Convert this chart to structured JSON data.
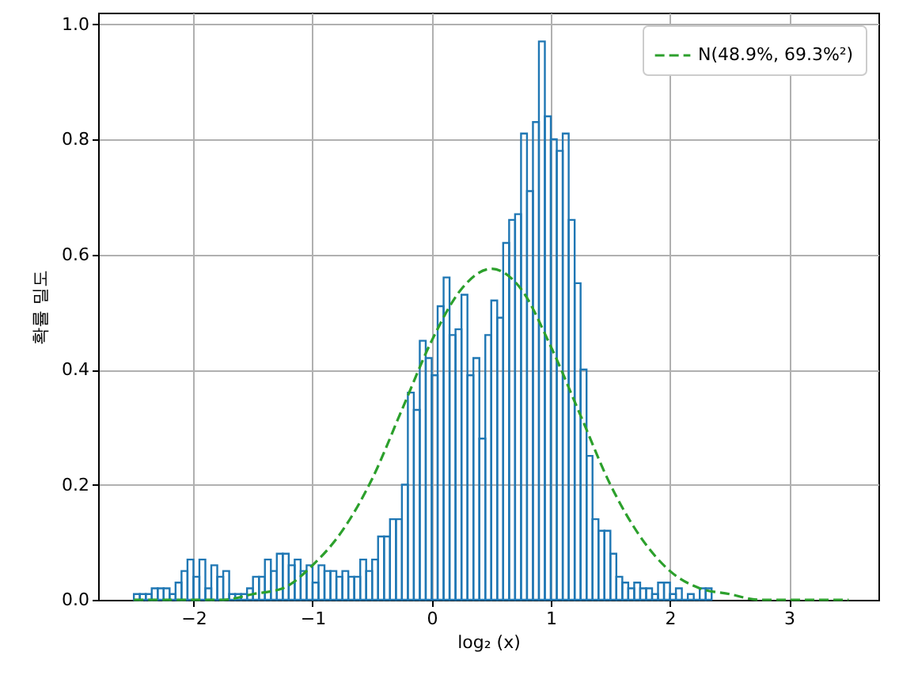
{
  "chart_data": {
    "type": "histogram",
    "xlabel": "log₂ (x)",
    "ylabel": "확률 밀도",
    "xlim": [
      -2.8,
      3.75
    ],
    "ylim": [
      0,
      1.02
    ],
    "xticks": [
      {
        "value": -2,
        "label": "−2"
      },
      {
        "value": -1,
        "label": "−1"
      },
      {
        "value": 0,
        "label": "0"
      },
      {
        "value": 1,
        "label": "1"
      },
      {
        "value": 2,
        "label": "2"
      },
      {
        "value": 3,
        "label": "3"
      }
    ],
    "yticks": [
      {
        "value": 0,
        "label": "0.0"
      },
      {
        "value": 0.2,
        "label": "0.2"
      },
      {
        "value": 0.4,
        "label": "0.4"
      },
      {
        "value": 0.6,
        "label": "0.6"
      },
      {
        "value": 0.8,
        "label": "0.8"
      },
      {
        "value": 1,
        "label": "1.0"
      }
    ],
    "grid": true,
    "legend": "top right",
    "series": [
      {
        "color": "#1f77b4",
        "bins": [
          -2.5,
          -2.45,
          -2.4,
          -2.35,
          -2.3,
          -2.25,
          -2.2,
          -2.15,
          -2.1,
          -2.05,
          -2.0,
          -1.95,
          -1.9,
          -1.85,
          -1.8,
          -1.75,
          -1.7,
          -1.65,
          -1.6,
          -1.55,
          -1.5,
          -1.45,
          -1.4,
          -1.35,
          -1.3,
          -1.25,
          -1.2,
          -1.15,
          -1.1,
          -1.05,
          -1.0,
          -0.95,
          -0.9,
          -0.85,
          -0.8,
          -0.75,
          -0.7,
          -0.65,
          -0.6,
          -0.55,
          -0.5,
          -0.45,
          -0.4,
          -0.35,
          -0.3,
          -0.25,
          -0.2,
          -0.15,
          -0.1,
          -0.05,
          0.0,
          0.05,
          0.1,
          0.15,
          0.2,
          0.25,
          0.3,
          0.35,
          0.4,
          0.45,
          0.5,
          0.55,
          0.6,
          0.65,
          0.7,
          0.75,
          0.8,
          0.85,
          0.9,
          0.95,
          1.0,
          1.05,
          1.1,
          1.15,
          1.2,
          1.25,
          1.3,
          1.35,
          1.4,
          1.45,
          1.5,
          1.55,
          1.6,
          1.65,
          1.7,
          1.75,
          1.8,
          1.85,
          1.9,
          1.95,
          2.0,
          2.05,
          2.1,
          2.15,
          2.2,
          2.25,
          2.3,
          2.35
        ],
        "values": [
          0.01,
          0.01,
          0.01,
          0.02,
          0.02,
          0.02,
          0.01,
          0.03,
          0.05,
          0.07,
          0.04,
          0.07,
          0.02,
          0.06,
          0.04,
          0.05,
          0.01,
          0.01,
          0.01,
          0.02,
          0.04,
          0.04,
          0.07,
          0.05,
          0.08,
          0.08,
          0.06,
          0.07,
          0.05,
          0.06,
          0.03,
          0.06,
          0.05,
          0.05,
          0.04,
          0.05,
          0.04,
          0.04,
          0.07,
          0.05,
          0.07,
          0.11,
          0.11,
          0.14,
          0.14,
          0.2,
          0.36,
          0.33,
          0.45,
          0.42,
          0.39,
          0.51,
          0.56,
          0.46,
          0.47,
          0.53,
          0.39,
          0.42,
          0.28,
          0.46,
          0.52,
          0.49,
          0.62,
          0.66,
          0.67,
          0.81,
          0.71,
          0.83,
          0.97,
          0.84,
          0.8,
          0.78,
          0.81,
          0.66,
          0.55,
          0.4,
          0.25,
          0.14,
          0.12,
          0.12,
          0.08,
          0.04,
          0.03,
          0.02,
          0.03,
          0.02,
          0.02,
          0.01,
          0.03,
          0.03,
          0.01,
          0.02,
          0.0,
          0.01,
          0.0,
          0.02,
          0.02
        ]
      },
      {
        "type": "line",
        "name": "N(48.9%, 69.3%²)",
        "color": "#2ca02c",
        "line_style": "dashed",
        "x": [
          -2.5,
          -2.25,
          -2.0,
          -1.75,
          -1.5,
          -1.25,
          -1.0,
          -0.75,
          -0.5,
          -0.25,
          0.0,
          0.25,
          0.5,
          0.75,
          1.0,
          1.25,
          1.5,
          1.75,
          2.0,
          2.25,
          2.5,
          2.75,
          3.0,
          3.25,
          3.5
        ],
        "values": [
          0.0,
          0.0,
          0.0,
          0.0,
          0.01,
          0.02,
          0.06,
          0.12,
          0.21,
          0.33,
          0.45,
          0.54,
          0.575,
          0.54,
          0.44,
          0.32,
          0.2,
          0.11,
          0.05,
          0.02,
          0.01,
          0.0,
          0.0,
          0.0,
          0.0
        ]
      }
    ]
  }
}
